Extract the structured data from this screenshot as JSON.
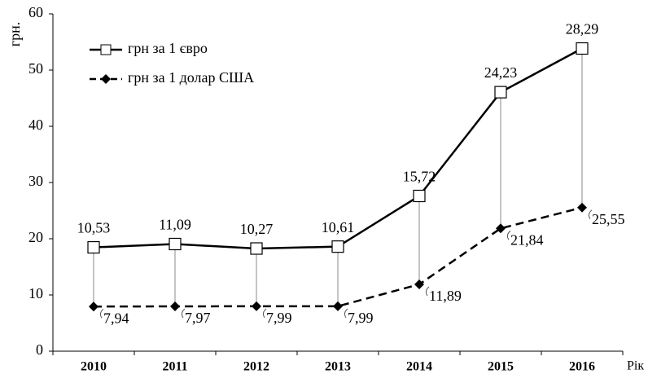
{
  "chart_data": {
    "type": "line",
    "stacked": true,
    "ylabel": "грн.",
    "xlabel": "Рік",
    "categories": [
      "2010",
      "2011",
      "2012",
      "2013",
      "2014",
      "2015",
      "2016"
    ],
    "series": [
      {
        "name": "грн за 1 євро",
        "color": "#000000",
        "dash": false,
        "marker": "square",
        "values": [
          10.53,
          11.09,
          10.27,
          10.61,
          15.72,
          24.23,
          28.29
        ],
        "value_labels": [
          "10,53",
          "11,09",
          "10,27",
          "10,61",
          "15,72",
          "24,23",
          "28,29"
        ]
      },
      {
        "name": "грн за 1 долар США",
        "color": "#000000",
        "dash": true,
        "marker": "diamond",
        "values": [
          7.94,
          7.97,
          7.99,
          7.99,
          11.89,
          21.84,
          25.55
        ],
        "value_labels": [
          "7,94",
          "7,97",
          "7,99",
          "7,99",
          "11,89",
          "21,84",
          "25,55"
        ]
      }
    ],
    "ylim": [
      0,
      60
    ],
    "yticks": [
      0,
      10,
      20,
      30,
      40,
      50,
      60
    ],
    "grid": false,
    "legend": "top-left"
  }
}
